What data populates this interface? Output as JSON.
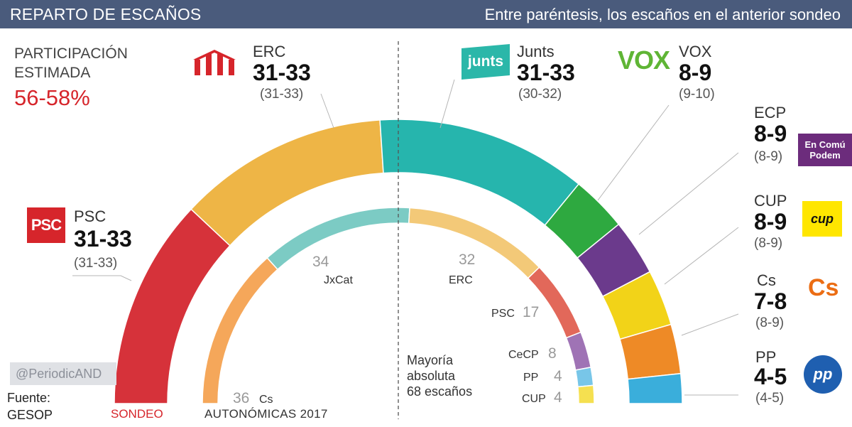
{
  "header": {
    "title": "REPARTO DE ESCAÑOS",
    "subtitle": "Entre paréntesis, los escaños en el anterior sondeo"
  },
  "participation": {
    "label_line1": "PARTICIPACIÓN",
    "label_line2": "ESTIMADA",
    "value": "56-58%"
  },
  "parties": {
    "psc": {
      "name": "PSC",
      "seats": "31-33",
      "prev": "(31-33)",
      "logo_text": "PSC"
    },
    "erc": {
      "name": "ERC",
      "seats": "31-33",
      "prev": "(31-33)"
    },
    "junts": {
      "name": "Junts",
      "seats": "31-33",
      "prev": "(30-32)",
      "logo_text": "junts"
    },
    "vox": {
      "name": "VOX",
      "seats": "8-9",
      "prev": "(9-10)",
      "logo_text": "VOX"
    },
    "ecp": {
      "name": "ECP",
      "seats": "8-9",
      "prev": "(8-9)",
      "logo_line1": "En Comú",
      "logo_line2": "Podem"
    },
    "cup": {
      "name": "CUP",
      "seats": "8-9",
      "prev": "(8-9)",
      "logo_text": "cup"
    },
    "cs": {
      "name": "Cs",
      "seats": "7-8",
      "prev": "(8-9)",
      "logo_text": "Cs"
    },
    "pp": {
      "name": "PP",
      "seats": "4-5",
      "prev": "(4-5)",
      "logo_text": "pp"
    }
  },
  "footer": {
    "watermark": "@PeriodicAND",
    "source_label": "Fuente:",
    "source_value": "GESOP",
    "sondeo_label": "SONDEO",
    "autonomicas_label": "AUTONÓMICAS  2017",
    "majority_line1": "Mayoría",
    "majority_line2": "absoluta",
    "majority_line3": "68 escaños"
  },
  "chart_data": [
    {
      "type": "pie",
      "title": "SONDEO",
      "subtype": "parliament-hemicycle",
      "categories": [
        "PSC",
        "ERC",
        "Junts",
        "VOX",
        "ECP",
        "CUP",
        "Cs",
        "PP"
      ],
      "values": [
        32,
        32,
        32,
        8.5,
        8.5,
        8.5,
        7.5,
        4.5
      ],
      "colors": [
        "#d6323a",
        "#eeb546",
        "#26b5ad",
        "#2ea940",
        "#6b3a8c",
        "#f2d318",
        "#ee8a26",
        "#3aaedb"
      ]
    },
    {
      "type": "pie",
      "title": "AUTONÓMICAS  2017",
      "subtype": "parliament-hemicycle",
      "categories": [
        "Cs",
        "JxCat",
        "ERC",
        "PSC",
        "CeCP",
        "PP",
        "CUP"
      ],
      "values": [
        36,
        34,
        32,
        17,
        8,
        4,
        4
      ],
      "colors": [
        "#f5a75a",
        "#7ccbc4",
        "#f3c978",
        "#e2685a",
        "#9f73b5",
        "#78c6e8",
        "#f5e050"
      ]
    }
  ]
}
